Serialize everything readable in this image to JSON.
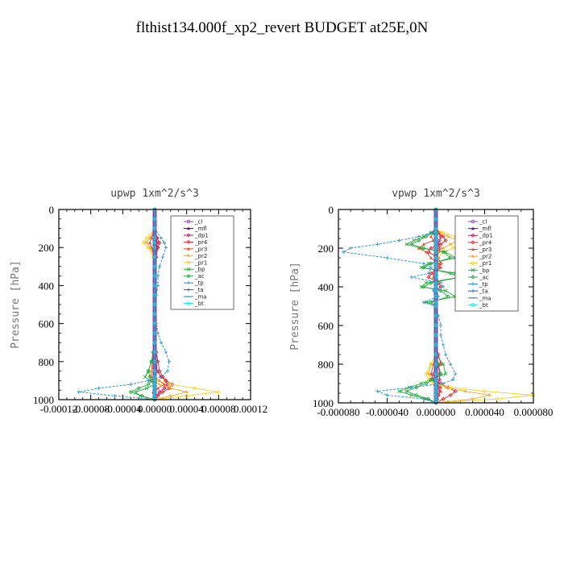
{
  "suptitle": "flthist134.000f_xp2_revert  BUDGET at25E,0N",
  "legend_entries": [
    "_cl",
    "_mfl",
    "_dp1",
    "_pr4",
    "_pr3",
    "_pr2",
    "_pr1",
    "_bp",
    "_ac",
    "_tp",
    "_ta",
    "_ma",
    "_bt"
  ],
  "series_colors": {
    "_cl": "#8e44ad",
    "_mfl": "#5b0f7a",
    "_dp1": "#c0185c",
    "_pr4": "#e0242a",
    "_pr3": "#e8482c",
    "_pr2": "#f5a623",
    "_pr1": "#f2d21b",
    "_bp": "#1fae2e",
    "_ac": "#2aa84a",
    "_tp": "#1f8fd0",
    "_ta": "#2a55c8",
    "_ma": "#2f7fa8",
    "_bt": "#19e3e8"
  },
  "chart_data": [
    {
      "type": "line",
      "title": "upwp   1xm^2/s^3",
      "ylabel": "Pressure [hPa]",
      "xlabel": "",
      "xlim": [
        -0.00012,
        0.00012
      ],
      "ylim": [
        1000,
        0
      ],
      "xticks": [
        "-0.00012",
        "-0.00008",
        "-0.00004",
        "0.00000",
        "0.00004",
        "0.00008",
        "0.00012"
      ],
      "xtick_values": [
        -0.00012,
        -8e-05,
        -4e-05,
        0.0,
        4e-05,
        8e-05,
        0.00012
      ],
      "yticks": [
        "0",
        "200",
        "400",
        "600",
        "800",
        "1000"
      ],
      "ytick_values": [
        0,
        200,
        400,
        600,
        800,
        1000
      ],
      "legend_position": "top-right",
      "y": [
        0,
        50,
        100,
        150,
        175,
        200,
        250,
        300,
        350,
        400,
        450,
        500,
        550,
        600,
        650,
        700,
        750,
        800,
        850,
        880,
        900,
        920,
        940,
        960,
        980,
        1000
      ],
      "series": [
        {
          "name": "_cl",
          "values": [
            0,
            0,
            0,
            0,
            0,
            0,
            0,
            0,
            0,
            0,
            0,
            0,
            0,
            0,
            0,
            0,
            0,
            0,
            0,
            0,
            0,
            0,
            0,
            0,
            0,
            0
          ]
        },
        {
          "name": "_mfl",
          "values": [
            0,
            0,
            0,
            0,
            0,
            0,
            0,
            0,
            0,
            0,
            0,
            0,
            0,
            0,
            0,
            0,
            0,
            0,
            0,
            0,
            0,
            0,
            0,
            0,
            0,
            0
          ]
        },
        {
          "name": "_dp1",
          "values": [
            0,
            0,
            0,
            2e-06,
            3e-06,
            3e-06,
            1e-06,
            0,
            0,
            0,
            0,
            0,
            0,
            0,
            0,
            0,
            0,
            2e-06,
            3e-06,
            8e-06,
            1.4e-05,
            1.6e-05,
            1.2e-05,
            6e-06,
            2e-06,
            0
          ]
        },
        {
          "name": "_pr4",
          "values": [
            0,
            0,
            0,
            3e-06,
            6e-06,
            4e-06,
            2e-06,
            0,
            0,
            0,
            0,
            0,
            0,
            0,
            0,
            0,
            2e-06,
            4e-06,
            6e-06,
            1e-05,
            1.4e-05,
            2.2e-05,
            1.8e-05,
            1e-05,
            4e-06,
            0
          ]
        },
        {
          "name": "_pr3",
          "values": [
            0,
            0,
            0,
            -4e-06,
            -6e-06,
            -4e-06,
            0,
            0,
            0,
            0,
            0,
            0,
            0,
            0,
            0,
            0,
            -2e-06,
            -3e-06,
            -4e-06,
            -4e-06,
            6e-06,
            1.2e-05,
            4e-06,
            -2e-06,
            2e-06,
            0
          ]
        },
        {
          "name": "_pr2",
          "values": [
            0,
            0,
            0,
            -6e-06,
            -1e-05,
            -6e-06,
            0,
            0,
            0,
            0,
            0,
            0,
            0,
            0,
            0,
            0,
            0,
            0,
            -4e-06,
            -6e-06,
            -4e-06,
            6e-06,
            2e-05,
            4e-05,
            2e-05,
            0
          ]
        },
        {
          "name": "_pr1",
          "values": [
            0,
            0,
            0,
            -1e-05,
            -1.4e-05,
            -8e-06,
            -2e-06,
            0,
            0,
            0,
            0,
            0,
            0,
            0,
            0,
            0,
            0,
            0,
            0,
            0,
            4e-06,
            2e-05,
            5e-05,
            8e-05,
            4e-05,
            0
          ]
        },
        {
          "name": "_bp",
          "values": [
            0,
            0,
            0,
            0,
            0,
            0,
            0,
            0,
            0,
            0,
            0,
            0,
            0,
            0,
            0,
            0,
            0,
            -4e-06,
            -8e-06,
            -1.2e-05,
            -6e-06,
            0,
            -1e-05,
            -2.4e-05,
            -1.8e-05,
            0
          ]
        },
        {
          "name": "_ac",
          "values": [
            0,
            0,
            0,
            0,
            0,
            0,
            0,
            0,
            0,
            0,
            0,
            0,
            0,
            0,
            0,
            0,
            -2e-06,
            -4e-06,
            -8e-06,
            -6e-06,
            -4e-06,
            -8e-06,
            -2e-05,
            -3e-05,
            -1.6e-05,
            0
          ]
        },
        {
          "name": "_tp",
          "values": [
            0,
            0,
            0,
            8e-06,
            1.2e-05,
            1.4e-05,
            1e-05,
            6e-06,
            4e-06,
            4e-06,
            2e-06,
            0,
            0,
            2e-06,
            4e-06,
            8e-06,
            1.4e-05,
            1.8e-05,
            1.6e-05,
            8e-06,
            -8e-06,
            -3e-05,
            -7e-05,
            -9.5e-05,
            -5e-05,
            0
          ]
        },
        {
          "name": "_ta",
          "values": [
            0,
            0,
            0,
            0,
            0,
            0,
            0,
            0,
            0,
            0,
            0,
            0,
            0,
            0,
            0,
            0,
            0,
            0,
            0,
            0,
            0,
            0,
            0,
            0,
            0,
            0
          ]
        },
        {
          "name": "_ma",
          "values": [
            0,
            0,
            0,
            0,
            0,
            0,
            0,
            0,
            0,
            0,
            0,
            0,
            0,
            0,
            0,
            0,
            0,
            0,
            0,
            0,
            0,
            0,
            0,
            0,
            0,
            0
          ]
        },
        {
          "name": "_bt",
          "values": [
            0,
            0,
            0,
            0,
            0,
            0,
            0,
            0,
            0,
            0,
            0,
            0,
            0,
            0,
            0,
            0,
            0,
            0,
            0,
            0,
            0,
            0,
            0,
            0,
            0,
            0
          ]
        }
      ]
    },
    {
      "type": "line",
      "title": "vpwp   1xm^2/s^3",
      "ylabel": "Pressure [hPa]",
      "xlabel": "",
      "xlim": [
        -8e-05,
        8e-05
      ],
      "ylim": [
        1000,
        0
      ],
      "xticks": [
        "-0.000080",
        "-0.000040",
        "0.000000",
        "0.000040",
        "0.000080"
      ],
      "xtick_values": [
        -8e-05,
        -4e-05,
        0.0,
        4e-05,
        8e-05
      ],
      "yticks": [
        "0",
        "200",
        "400",
        "600",
        "800",
        "1000"
      ],
      "ytick_values": [
        0,
        200,
        400,
        600,
        800,
        1000
      ],
      "legend_position": "top-right",
      "y": [
        0,
        50,
        100,
        120,
        140,
        160,
        180,
        200,
        220,
        250,
        280,
        300,
        330,
        350,
        380,
        400,
        420,
        450,
        480,
        500,
        550,
        600,
        650,
        700,
        750,
        800,
        850,
        880,
        900,
        920,
        940,
        960,
        980,
        1000
      ],
      "series": [
        {
          "name": "_cl",
          "values": [
            0,
            0,
            0,
            0,
            0,
            0,
            0,
            0,
            0,
            0,
            0,
            0,
            0,
            0,
            0,
            0,
            0,
            0,
            0,
            0,
            0,
            0,
            0,
            0,
            0,
            0,
            0,
            0,
            0,
            0,
            0,
            0,
            0,
            0
          ]
        },
        {
          "name": "_mfl",
          "values": [
            0,
            0,
            0,
            0,
            0,
            0,
            0,
            0,
            0,
            0,
            0,
            0,
            0,
            0,
            0,
            0,
            0,
            0,
            0,
            0,
            0,
            0,
            0,
            0,
            0,
            0,
            0,
            0,
            0,
            0,
            0,
            0,
            0,
            0
          ]
        },
        {
          "name": "_dp1",
          "values": [
            0,
            0,
            0,
            2e-06,
            4e-06,
            3e-06,
            2e-06,
            3e-06,
            2e-06,
            1e-06,
            0,
            0,
            0,
            0,
            0,
            0,
            0,
            0,
            0,
            0,
            0,
            0,
            0,
            0,
            0,
            2e-06,
            3e-06,
            3e-06,
            2e-06,
            2e-06,
            3e-06,
            2e-06,
            1e-06,
            0
          ]
        },
        {
          "name": "_pr4",
          "values": [
            0,
            0,
            0,
            2e-06,
            6e-06,
            8e-06,
            4e-06,
            -4e-06,
            -6e-06,
            2e-06,
            4e-06,
            2e-06,
            -4e-06,
            -6e-06,
            2e-06,
            4e-06,
            0,
            0,
            0,
            0,
            0,
            0,
            0,
            0,
            2e-06,
            4e-06,
            -2e-06,
            -4e-06,
            4e-06,
            1e-05,
            1.6e-05,
            1.2e-05,
            6e-06,
            0
          ]
        },
        {
          "name": "_pr3",
          "values": [
            0,
            0,
            0,
            -2e-06,
            -4e-06,
            -2e-06,
            -1e-05,
            -1.4e-05,
            -8e-06,
            -4e-06,
            2e-06,
            4e-06,
            -2e-06,
            -2e-06,
            0,
            0,
            0,
            0,
            0,
            0,
            0,
            0,
            0,
            0,
            0,
            -2e-06,
            -4e-06,
            -2e-06,
            2e-06,
            4e-06,
            4e-06,
            2e-06,
            0,
            0
          ]
        },
        {
          "name": "_pr2",
          "values": [
            0,
            0,
            0,
            4e-06,
            1e-05,
            1.8e-05,
            1.2e-05,
            6e-06,
            2e-06,
            0,
            0,
            0,
            0,
            0,
            0,
            0,
            0,
            0,
            0,
            0,
            0,
            0,
            0,
            0,
            0,
            -4e-06,
            -6e-06,
            -4e-06,
            0,
            8e-06,
            2.4e-05,
            4.4e-05,
            3e-05,
            0
          ]
        },
        {
          "name": "_pr1",
          "values": [
            0,
            0,
            0,
            6e-06,
            1.6e-05,
            2.4e-05,
            2e-05,
            1.4e-05,
            6e-06,
            2e-06,
            0,
            0,
            0,
            0,
            0,
            0,
            0,
            0,
            0,
            0,
            0,
            0,
            0,
            0,
            0,
            -4e-06,
            -8e-06,
            -6e-06,
            -2e-06,
            1.2e-05,
            4e-05,
            8e-05,
            5e-05,
            0
          ]
        },
        {
          "name": "_bp",
          "values": [
            0,
            0,
            0,
            -4e-06,
            -1e-05,
            -1.8e-05,
            -2.4e-05,
            -1.2e-05,
            8e-06,
            1.6e-05,
            -6e-06,
            -1.2e-05,
            1.6e-05,
            2e-05,
            -8e-06,
            -1.2e-05,
            8e-06,
            1.6e-05,
            -8e-06,
            0,
            0,
            0,
            0,
            0,
            0,
            6e-06,
            8e-06,
            -4e-06,
            -1.2e-05,
            -2.2e-05,
            -3e-05,
            -2e-05,
            -8e-06,
            0
          ]
        },
        {
          "name": "_ac",
          "values": [
            0,
            0,
            0,
            -2e-06,
            -8e-06,
            -1.4e-05,
            -2e-05,
            -1e-05,
            6e-06,
            1.2e-05,
            -4e-06,
            -1e-05,
            1.2e-05,
            2e-05,
            -4e-06,
            -1e-05,
            4e-06,
            1e-05,
            -4e-06,
            0,
            0,
            0,
            0,
            0,
            0,
            2e-06,
            4e-06,
            -2e-06,
            -8e-06,
            -1.6e-05,
            -2.4e-05,
            -1.6e-05,
            -6e-06,
            0
          ]
        },
        {
          "name": "_tp",
          "values": [
            0,
            0,
            0,
            -4e-06,
            -1.4e-05,
            -3e-05,
            -4.8e-05,
            -7e-05,
            -7.6e-05,
            -4e-05,
            -1e-05,
            -4e-06,
            -6e-06,
            -2e-05,
            4e-06,
            6e-06,
            -2e-06,
            2e-06,
            -1e-05,
            0,
            2e-06,
            4e-06,
            4e-06,
            6e-06,
            8e-06,
            1.2e-05,
            1.6e-05,
            1.4e-05,
            6e-06,
            -2e-05,
            -4.8e-05,
            -4e-05,
            -1e-05,
            0
          ]
        },
        {
          "name": "_ta",
          "values": [
            0,
            0,
            0,
            0,
            0,
            0,
            0,
            0,
            0,
            0,
            0,
            0,
            0,
            0,
            0,
            0,
            0,
            0,
            0,
            0,
            0,
            0,
            0,
            0,
            0,
            0,
            0,
            0,
            0,
            0,
            0,
            0,
            0,
            0
          ]
        },
        {
          "name": "_ma",
          "values": [
            0,
            0,
            0,
            0,
            0,
            0,
            0,
            0,
            0,
            0,
            0,
            0,
            0,
            0,
            0,
            0,
            0,
            0,
            0,
            0,
            0,
            0,
            0,
            0,
            0,
            0,
            0,
            0,
            0,
            0,
            0,
            0,
            0,
            0
          ]
        },
        {
          "name": "_bt",
          "values": [
            0,
            0,
            0,
            0,
            0,
            0,
            0,
            0,
            0,
            0,
            0,
            0,
            0,
            0,
            0,
            0,
            0,
            0,
            0,
            0,
            0,
            0,
            0,
            0,
            0,
            0,
            0,
            0,
            0,
            0,
            0,
            0,
            0,
            0
          ]
        }
      ]
    }
  ]
}
